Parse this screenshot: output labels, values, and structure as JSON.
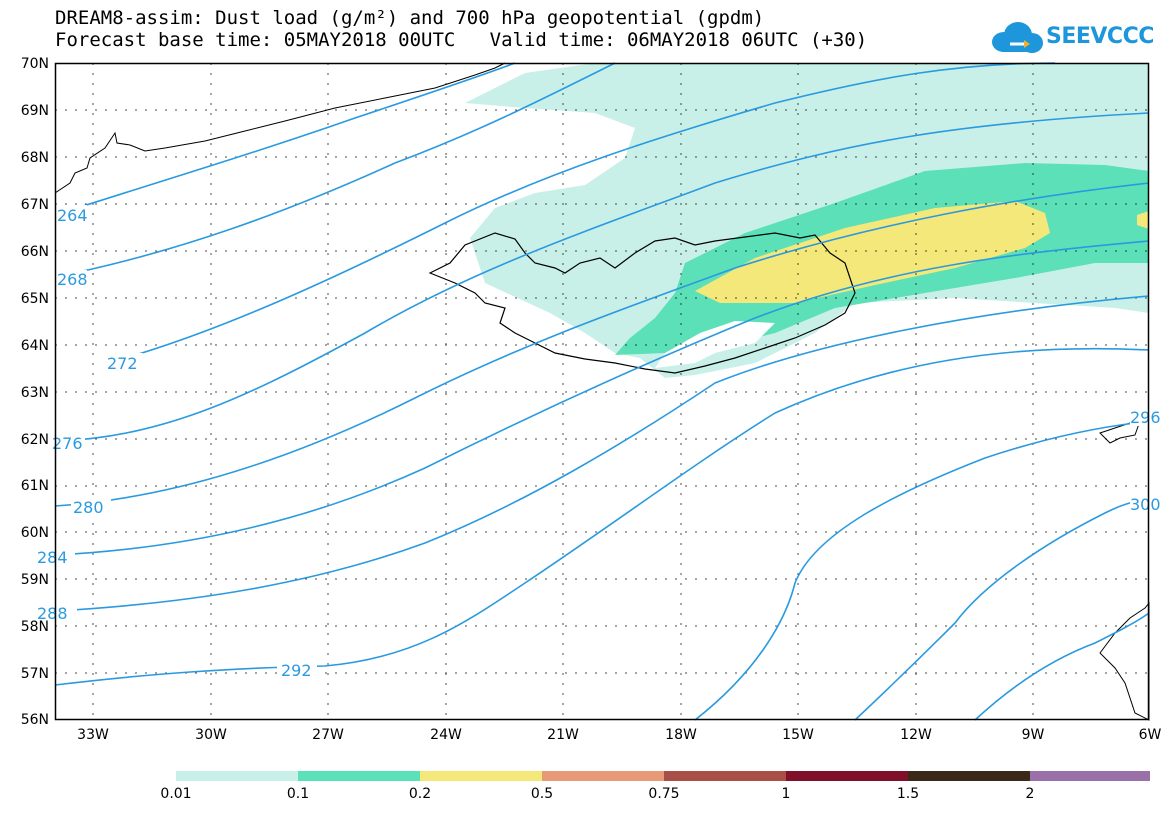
{
  "title": {
    "line1": "DREAM8-assim: Dust load (g/m²) and 700 hPa geopotential (gpdm)",
    "line2": "Forecast base time: 05MAY2018 00UTC   Valid time: 06MAY2018 06UTC (+30)"
  },
  "logo": {
    "text": "SEEVCCC"
  },
  "latitudes": [
    "70N",
    "69N",
    "68N",
    "67N",
    "66N",
    "65N",
    "64N",
    "63N",
    "62N",
    "61N",
    "60N",
    "59N",
    "58N",
    "57N",
    "56N"
  ],
  "longitudes": [
    "33W",
    "30W",
    "27W",
    "24W",
    "21W",
    "18W",
    "15W",
    "12W",
    "9W",
    "6W"
  ],
  "contour_labels": [
    "264",
    "268",
    "272",
    "276",
    "280",
    "284",
    "288",
    "292",
    "296",
    "300"
  ],
  "colorbar": {
    "labels": [
      "0.01",
      "0.1",
      "0.2",
      "0.5",
      "0.75",
      "1",
      "1.5",
      "2"
    ],
    "colors": [
      "#c8f0e8",
      "#5ce0b8",
      "#f5e87a",
      "#e89a78",
      "#a85048",
      "#800f2a",
      "#3c2818",
      "#9a70a8"
    ]
  },
  "colors": {
    "contour": "#2a9ae0",
    "dust_low": "#c8f0e8",
    "dust_mid": "#5ce0b8",
    "dust_high": "#f5e87a",
    "coast": "#000000"
  }
}
